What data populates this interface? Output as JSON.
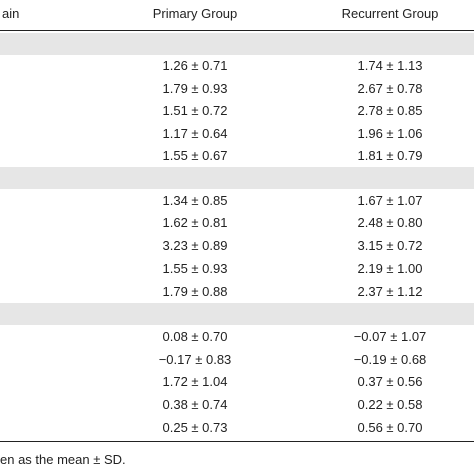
{
  "table": {
    "header": {
      "first_col_fragment": "ain",
      "col_primary": "Primary Group",
      "col_recurrent": "Recurrent Group"
    },
    "sections": [
      {
        "rows": [
          {
            "primary": "1.26 ± 0.71",
            "recurrent": "1.74 ± 1.13"
          },
          {
            "primary": "1.79 ± 0.93",
            "recurrent": "2.67 ± 0.78"
          },
          {
            "primary": "1.51 ± 0.72",
            "recurrent": "2.78 ± 0.85"
          },
          {
            "primary": "1.17 ± 0.64",
            "recurrent": "1.96 ± 1.06"
          },
          {
            "primary": "1.55 ± 0.67",
            "recurrent": "1.81 ± 0.79"
          }
        ]
      },
      {
        "rows": [
          {
            "primary": "1.34 ± 0.85",
            "recurrent": "1.67 ± 1.07"
          },
          {
            "primary": "1.62 ± 0.81",
            "recurrent": "2.48 ± 0.80"
          },
          {
            "primary": "3.23 ± 0.89",
            "recurrent": "3.15 ± 0.72"
          },
          {
            "primary": "1.55 ± 0.93",
            "recurrent": "2.19 ± 1.00"
          },
          {
            "primary": "1.79 ± 0.88",
            "recurrent": "2.37 ± 1.12"
          }
        ]
      },
      {
        "rows": [
          {
            "primary": "0.08 ± 0.70",
            "recurrent": "−0.07 ± 1.07"
          },
          {
            "primary": "−0.17 ± 0.83",
            "recurrent": "−0.19 ± 0.68"
          },
          {
            "primary": "1.72 ± 1.04",
            "recurrent": "0.37 ± 0.56"
          },
          {
            "primary": "0.38 ± 0.74",
            "recurrent": "0.22 ± 0.58"
          },
          {
            "primary": "0.25 ± 0.73",
            "recurrent": "0.56 ± 0.70"
          }
        ]
      }
    ],
    "footnote": "en as the mean ± SD."
  }
}
